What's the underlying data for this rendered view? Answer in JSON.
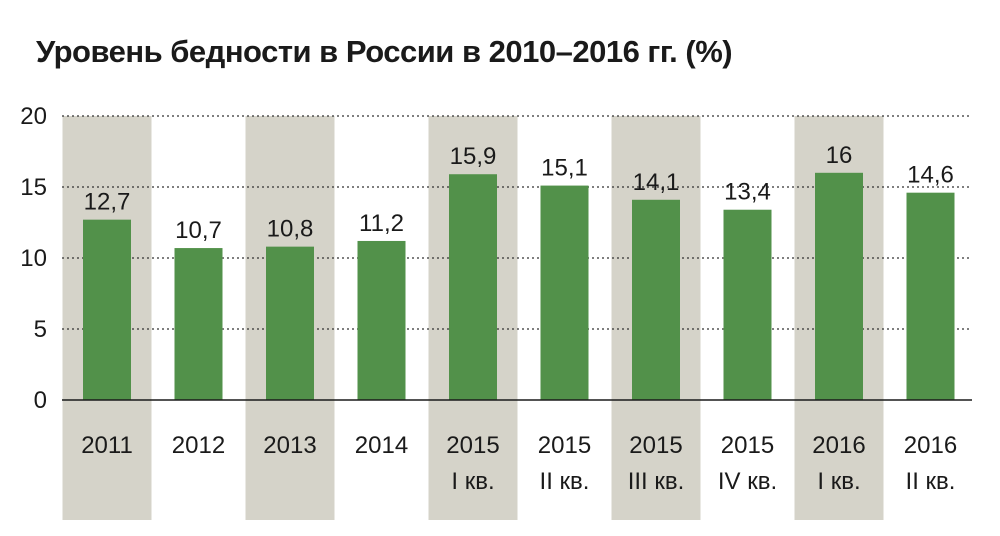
{
  "chart_data": {
    "type": "bar",
    "title": "Уровень бедности в России в 2010–2016 гг. (%)",
    "categories": [
      [
        "2011"
      ],
      [
        "2012"
      ],
      [
        "2013"
      ],
      [
        "2014"
      ],
      [
        "2015",
        "I кв."
      ],
      [
        "2015",
        "II кв."
      ],
      [
        "2015",
        "III кв."
      ],
      [
        "2015",
        "IV кв."
      ],
      [
        "2016",
        "I кв."
      ],
      [
        "2016",
        "II кв."
      ]
    ],
    "values": [
      12.7,
      10.7,
      10.8,
      11.2,
      15.9,
      15.1,
      14.1,
      13.4,
      16,
      14.6
    ],
    "value_labels": [
      "12,7",
      "10,7",
      "10,8",
      "11,2",
      "15,9",
      "15,1",
      "14,1",
      "13,4",
      "16",
      "14,6"
    ],
    "y_ticks": [
      0,
      5,
      10,
      15,
      20
    ],
    "ylim": [
      0,
      20
    ],
    "grid": true,
    "shaded_categories": [
      0,
      2,
      4,
      6,
      8
    ],
    "colors": {
      "bar": "#52914a",
      "band": "#d5d3c9",
      "grid": "#333333",
      "axis": "#1a1a1a"
    }
  }
}
